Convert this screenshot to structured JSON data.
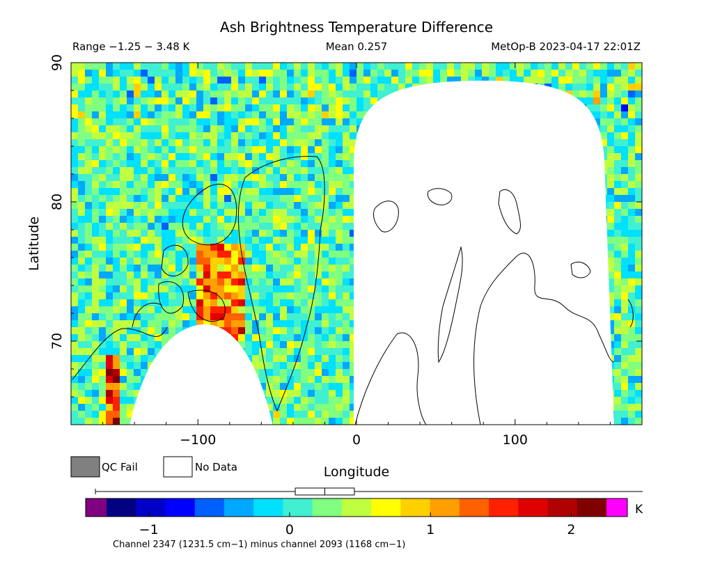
{
  "chart_data": {
    "type": "heatmap",
    "title": "Ash Brightness Temperature Difference",
    "header": {
      "range": "Range −1.25 − 3.48 K",
      "mean": "Mean 0.257",
      "source": "MetOp-B 2023-04-17 22:01Z"
    },
    "xlabel": "Longitude",
    "ylabel": "Latitude",
    "x_range": [
      -180,
      180
    ],
    "y_range": [
      64,
      90
    ],
    "x_ticks": [
      -100,
      0,
      100
    ],
    "x_tick_labels": [
      "−100",
      "0",
      "100"
    ],
    "y_ticks": [
      70,
      80,
      90
    ],
    "y_tick_labels": [
      "70",
      "80",
      "90"
    ],
    "legend": [
      {
        "label": "QC Fail",
        "color": "#808080"
      },
      {
        "label": "No Data",
        "color": "#ffffff"
      }
    ],
    "colorbar": {
      "range": [
        -1.3,
        2.25
      ],
      "unit": "K",
      "tick_values": [
        -1,
        0,
        1,
        2
      ],
      "tick_labels": [
        "−1",
        "0",
        "1",
        "2"
      ],
      "caption": "Channel 2347 (1231.5 cm−1) minus channel 2093 (1168 cm−1)",
      "boxplot": {
        "min": -1.25,
        "q1": 0.05,
        "median": 0.25,
        "q3": 0.45,
        "max": 3.48
      },
      "under_color": "#800080",
      "over_color": "#ff00ff",
      "colors": [
        "#000080",
        "#0000c8",
        "#0000ff",
        "#0060ff",
        "#00a8ff",
        "#00e0ff",
        "#40f0d0",
        "#80ff80",
        "#c0ff40",
        "#ffff00",
        "#ffd000",
        "#ffa000",
        "#ff6000",
        "#ff2000",
        "#e00000",
        "#b00000",
        "#800000"
      ]
    }
  }
}
